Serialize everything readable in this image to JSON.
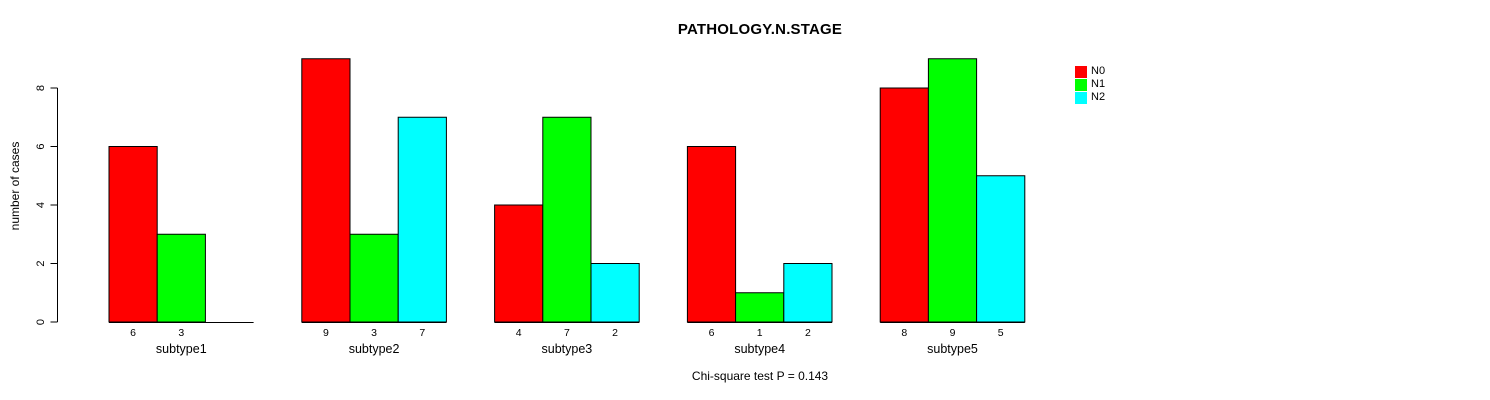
{
  "title": "PATHOLOGY.N.STAGE",
  "footer": "Chi-square test P = 0.143",
  "colors": {
    "background": "#ffffff",
    "axis": "#000000",
    "text": "#000000",
    "bar_border": "#000000"
  },
  "chart_data": {
    "type": "bar",
    "title": "PATHOLOGY.N.STAGE",
    "categories": [
      "subtype1",
      "subtype2",
      "subtype3",
      "subtype4",
      "subtype5"
    ],
    "series": [
      {
        "name": "N0",
        "color": "#ff0000",
        "values": [
          6,
          9,
          4,
          6,
          8
        ]
      },
      {
        "name": "N1",
        "color": "#00ff00",
        "values": [
          3,
          3,
          7,
          1,
          9
        ]
      },
      {
        "name": "N2",
        "color": "#00ffff",
        "values": [
          0,
          7,
          2,
          2,
          5
        ]
      }
    ],
    "xlabel": "",
    "ylabel": "number of cases",
    "yticks": [
      0,
      2,
      4,
      6,
      8
    ],
    "ylim": [
      0,
      9
    ],
    "grid": false,
    "legend_position": "top-right",
    "bar_value_labels_shown": true,
    "zero_height_bars_unlabeled": true,
    "annotation": "Chi-square test P = 0.143"
  }
}
